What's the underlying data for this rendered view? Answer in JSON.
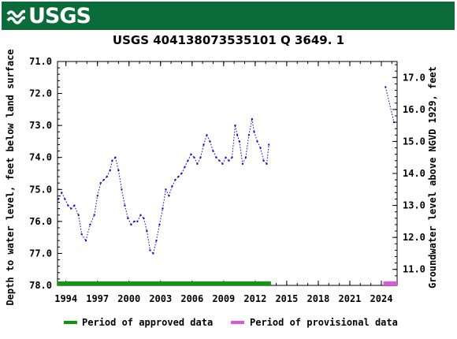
{
  "header": {
    "logo_text": "USGS",
    "logo_icon": "usgs-wave-icon",
    "brand_color": "#0b6b3a"
  },
  "chart_data": {
    "type": "scatter",
    "title": "USGS 404138073535101 Q  3649. 1",
    "ylabel": "Depth to water level, feet below land surface",
    "ylabel_right": "Groundwater level above NGVD 1929, feet",
    "ylim": [
      78.0,
      71.0
    ],
    "yticks": [
      "71.0",
      "72.0",
      "73.0",
      "74.0",
      "75.0",
      "76.0",
      "77.0",
      "78.0"
    ],
    "ylim_right": [
      10.5,
      17.5
    ],
    "yticks_right": [
      "11.0",
      "12.0",
      "13.0",
      "14.0",
      "15.0",
      "16.0",
      "17.0"
    ],
    "xlim": [
      1993.2,
      2025.5
    ],
    "xticks": [
      "1994",
      "1997",
      "2000",
      "2003",
      "2006",
      "2009",
      "2012",
      "2015",
      "2018",
      "2021",
      "2024"
    ],
    "series": [
      {
        "name": "depth",
        "color": "#0000cc",
        "x": [
          1993.3,
          1993.6,
          1993.9,
          1994.2,
          1994.5,
          1994.8,
          1995.2,
          1995.5,
          1995.9,
          1996.3,
          1996.7,
          1997.0,
          1997.3,
          1997.6,
          1997.9,
          1998.2,
          1998.4,
          1998.7,
          1999.0,
          1999.3,
          1999.6,
          1999.9,
          2000.2,
          2000.5,
          2000.8,
          2001.1,
          2001.4,
          2001.7,
          2002.0,
          2002.3,
          2002.6,
          2002.9,
          2003.2,
          2003.5,
          2003.8,
          2004.1,
          2004.4,
          2004.7,
          2005.0,
          2005.3,
          2005.6,
          2005.9,
          2006.2,
          2006.5,
          2006.8,
          2007.1,
          2007.4,
          2007.7,
          2008.0,
          2008.3,
          2008.6,
          2008.9,
          2009.2,
          2009.5,
          2009.8,
          2010.1,
          2010.3,
          2010.5,
          2010.8,
          2011.1,
          2011.4,
          2011.7,
          2011.9,
          2012.2,
          2012.5,
          2012.8,
          2013.1,
          2013.3,
          2024.4,
          2025.2
        ],
        "values": [
          75.3,
          75.1,
          75.3,
          75.5,
          75.6,
          75.5,
          75.8,
          76.4,
          76.6,
          76.1,
          75.8,
          75.2,
          74.8,
          74.7,
          74.6,
          74.4,
          74.1,
          74.0,
          74.4,
          75.0,
          75.5,
          75.9,
          76.1,
          76.0,
          76.0,
          75.8,
          75.9,
          76.3,
          76.9,
          77.0,
          76.6,
          76.1,
          75.6,
          75.0,
          75.2,
          74.9,
          74.7,
          74.6,
          74.5,
          74.3,
          74.1,
          73.9,
          74.0,
          74.2,
          74.0,
          73.6,
          73.3,
          73.5,
          73.8,
          74.0,
          74.1,
          74.2,
          74.0,
          74.1,
          74.0,
          73.0,
          73.3,
          73.5,
          74.2,
          74.0,
          73.3,
          72.8,
          73.2,
          73.5,
          73.7,
          74.1,
          74.2,
          73.6,
          71.8,
          72.9
        ]
      }
    ],
    "bars": [
      {
        "name": "approved",
        "x_start": 1993.2,
        "x_end": 2013.5,
        "color": "#0a9a0a"
      },
      {
        "name": "provisional",
        "x_start": 2024.2,
        "x_end": 2025.5,
        "color": "#e052e0"
      }
    ],
    "legend": {
      "position": "bottom",
      "items": [
        {
          "label": "Period of approved data",
          "color": "#0a9a0a"
        },
        {
          "label": "Period of provisional data",
          "color": "#e052e0"
        }
      ]
    }
  }
}
